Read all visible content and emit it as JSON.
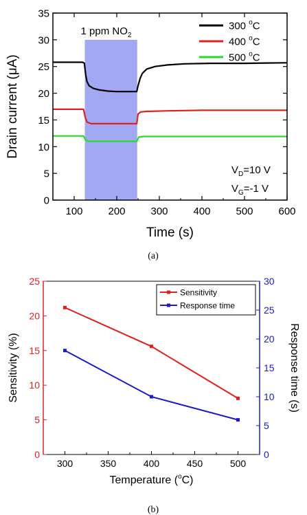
{
  "chart_data": [
    {
      "type": "line",
      "caption": "(a)",
      "xlabel": "Time (s)",
      "ylabel_parts": [
        "Drain current (",
        "μ",
        "A)"
      ],
      "xlim": [
        50,
        600
      ],
      "ylim": [
        0,
        35
      ],
      "xticks": [
        100,
        200,
        300,
        400,
        500,
        600
      ],
      "yticks": [
        0,
        5,
        10,
        15,
        20,
        25,
        30,
        35
      ],
      "exposure": {
        "label": "1 ppm NO",
        "sub": "2",
        "x_start": 125,
        "x_end": 248,
        "color": "#a3a8f2"
      },
      "legend_position": "top-right",
      "conditions": [
        {
          "main": "V",
          "sub": "D",
          "rest": "=10 V"
        },
        {
          "main": "V",
          "sub": "G",
          "rest": "=-1 V"
        }
      ],
      "series": [
        {
          "name": "300 °C",
          "name_main": "300 ",
          "name_sup": "o",
          "name_unit": "C",
          "color": "#000000",
          "points": [
            [
              50,
              25.8
            ],
            [
              120,
              25.8
            ],
            [
              124,
              25.6
            ],
            [
              127,
              23.5
            ],
            [
              130,
              22.2
            ],
            [
              135,
              21.4
            ],
            [
              145,
              20.9
            ],
            [
              160,
              20.6
            ],
            [
              180,
              20.4
            ],
            [
              200,
              20.3
            ],
            [
              220,
              20.3
            ],
            [
              240,
              20.3
            ],
            [
              247,
              20.3
            ],
            [
              250,
              21.4
            ],
            [
              255,
              22.8
            ],
            [
              260,
              23.7
            ],
            [
              270,
              24.5
            ],
            [
              290,
              25.0
            ],
            [
              320,
              25.3
            ],
            [
              360,
              25.5
            ],
            [
              420,
              25.6
            ],
            [
              500,
              25.6
            ],
            [
              600,
              25.7
            ]
          ]
        },
        {
          "name": "400 °C",
          "name_main": "400 ",
          "name_sup": "o",
          "name_unit": "C",
          "color": "#e02020",
          "points": [
            [
              50,
              17.0
            ],
            [
              122,
              17.0
            ],
            [
              126,
              15.5
            ],
            [
              130,
              14.6
            ],
            [
              140,
              14.3
            ],
            [
              200,
              14.3
            ],
            [
              247,
              14.3
            ],
            [
              250,
              16.1
            ],
            [
              256,
              16.5
            ],
            [
              270,
              16.6
            ],
            [
              320,
              16.7
            ],
            [
              400,
              16.8
            ],
            [
              600,
              16.8
            ]
          ]
        },
        {
          "name": "500 °C",
          "name_main": "500 ",
          "name_sup": "o",
          "name_unit": "C",
          "color": "#22dd22",
          "points": [
            [
              50,
              12.0
            ],
            [
              122,
              12.0
            ],
            [
              127,
              11.2
            ],
            [
              135,
              11.0
            ],
            [
              200,
              11.0
            ],
            [
              247,
              11.0
            ],
            [
              252,
              11.8
            ],
            [
              262,
              11.9
            ],
            [
              600,
              11.9
            ]
          ]
        }
      ]
    },
    {
      "type": "line",
      "caption": "(b)",
      "xlabel": "Temperature (°C)",
      "xlabel_parts": [
        "Temperature (",
        "o",
        "C)"
      ],
      "ylabel_left": "Sensitivity (%)",
      "ylabel_right": "Response time (s)",
      "xlim": [
        275,
        525
      ],
      "xticks": [
        300,
        350,
        400,
        450,
        500
      ],
      "ylim_left": [
        0,
        25
      ],
      "yticks_left": [
        0,
        5,
        10,
        15,
        20,
        25
      ],
      "ylim_right": [
        0,
        30
      ],
      "yticks_right": [
        0,
        5,
        10,
        15,
        20,
        25,
        30
      ],
      "legend_position": "top-right",
      "left_axis_color": "#e02020",
      "right_axis_color": "#1a1acc",
      "series": [
        {
          "name": "Sensitivity",
          "axis": "left",
          "color": "#e02020",
          "x": [
            300,
            400,
            500
          ],
          "y": [
            21.2,
            15.6,
            8.1
          ]
        },
        {
          "name": "Response time",
          "axis": "right",
          "color": "#1a1acc",
          "x": [
            300,
            400,
            500
          ],
          "y": [
            18,
            10,
            6
          ]
        }
      ]
    }
  ]
}
